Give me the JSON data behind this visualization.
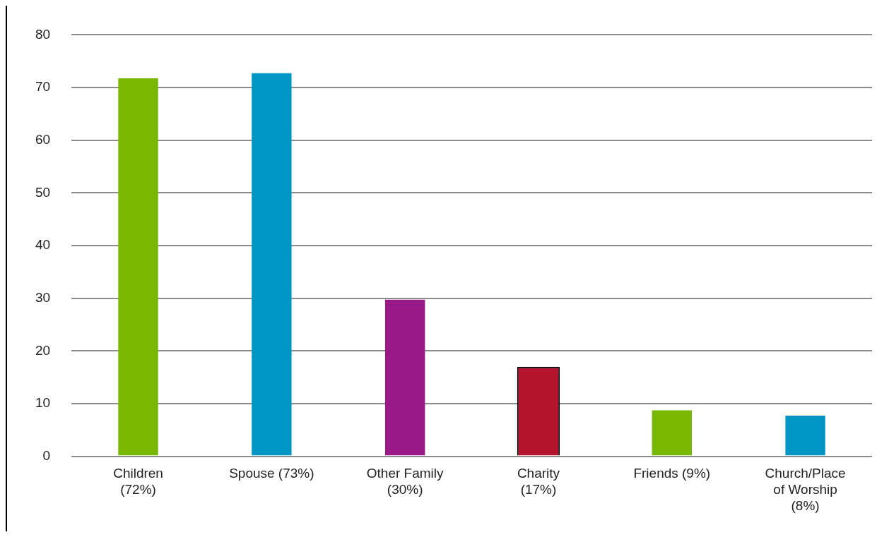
{
  "chart_data": {
    "type": "bar",
    "categories": [
      "Children (72%)",
      "Spouse (73%)",
      "Other Family (30%)",
      "Charity (17%)",
      "Friends (9%)",
      "Church/Place of Worship (8%)"
    ],
    "values": [
      72,
      73,
      30,
      17,
      9,
      8
    ],
    "colors": [
      "#78b800",
      "#0096c4",
      "#9b1889",
      "#b5142f",
      "#78b800",
      "#0096c4"
    ],
    "ylim": [
      0,
      80
    ],
    "yticks": [
      0,
      10,
      20,
      30,
      40,
      50,
      60,
      70,
      80
    ],
    "grid": "y",
    "legend": false
  }
}
